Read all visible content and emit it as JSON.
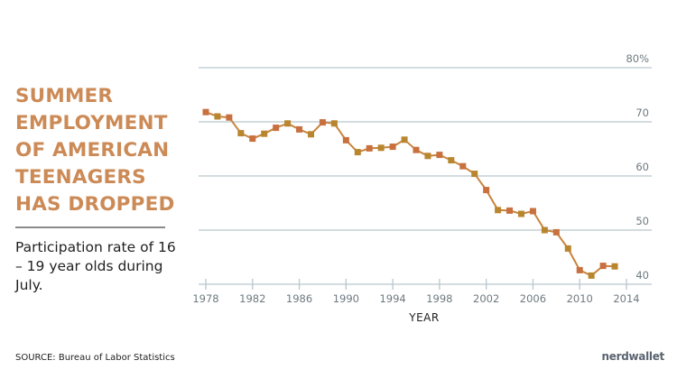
{
  "title_lines": [
    "SUMMER",
    "EMPLOYMENT",
    "OF AMERICAN",
    "TEENAGERS",
    "HAS DROPPED"
  ],
  "subtitle": "Participation rate of 16 – 19 year olds during July.",
  "source": "SOURCE: Bureau of Labor Statistics",
  "logo": "nerdwallet",
  "colors": {
    "title": "#cc8a56",
    "line": "#c8843e",
    "marker": "#b8862e",
    "grid": "#b9c7cc"
  },
  "chart_data": {
    "type": "line",
    "title": "Summer employment of American teenagers has dropped",
    "xlabel": "YEAR",
    "ylabel": "Participation rate",
    "xlim": [
      1978,
      2014
    ],
    "ylim": [
      40,
      80
    ],
    "x_ticks": [
      1978,
      1982,
      1986,
      1990,
      1994,
      1998,
      2002,
      2006,
      2010,
      2014
    ],
    "y_ticks": [
      {
        "v": 40,
        "label": "40"
      },
      {
        "v": 50,
        "label": "50"
      },
      {
        "v": 60,
        "label": "60"
      },
      {
        "v": 70,
        "label": "70"
      },
      {
        "v": 80,
        "label": "80%"
      }
    ],
    "grid": true,
    "series": [
      {
        "name": "Participation rate",
        "x": [
          1978,
          1979,
          1980,
          1981,
          1982,
          1983,
          1984,
          1985,
          1986,
          1987,
          1988,
          1989,
          1990,
          1991,
          1992,
          1993,
          1994,
          1995,
          1996,
          1997,
          1998,
          1999,
          2000,
          2001,
          2002,
          2003,
          2004,
          2005,
          2006,
          2007,
          2008,
          2009,
          2010,
          2011,
          2012,
          2013
        ],
        "values": [
          71.8,
          71.0,
          70.8,
          67.9,
          66.9,
          67.8,
          68.9,
          69.7,
          68.6,
          67.7,
          69.9,
          69.7,
          66.6,
          64.4,
          65.1,
          65.2,
          65.4,
          66.7,
          64.8,
          63.7,
          63.9,
          62.9,
          61.8,
          60.4,
          57.4,
          53.7,
          53.6,
          53.0,
          53.5,
          50.0,
          49.6,
          46.6,
          42.6,
          41.6,
          43.4,
          43.3
        ]
      }
    ]
  }
}
